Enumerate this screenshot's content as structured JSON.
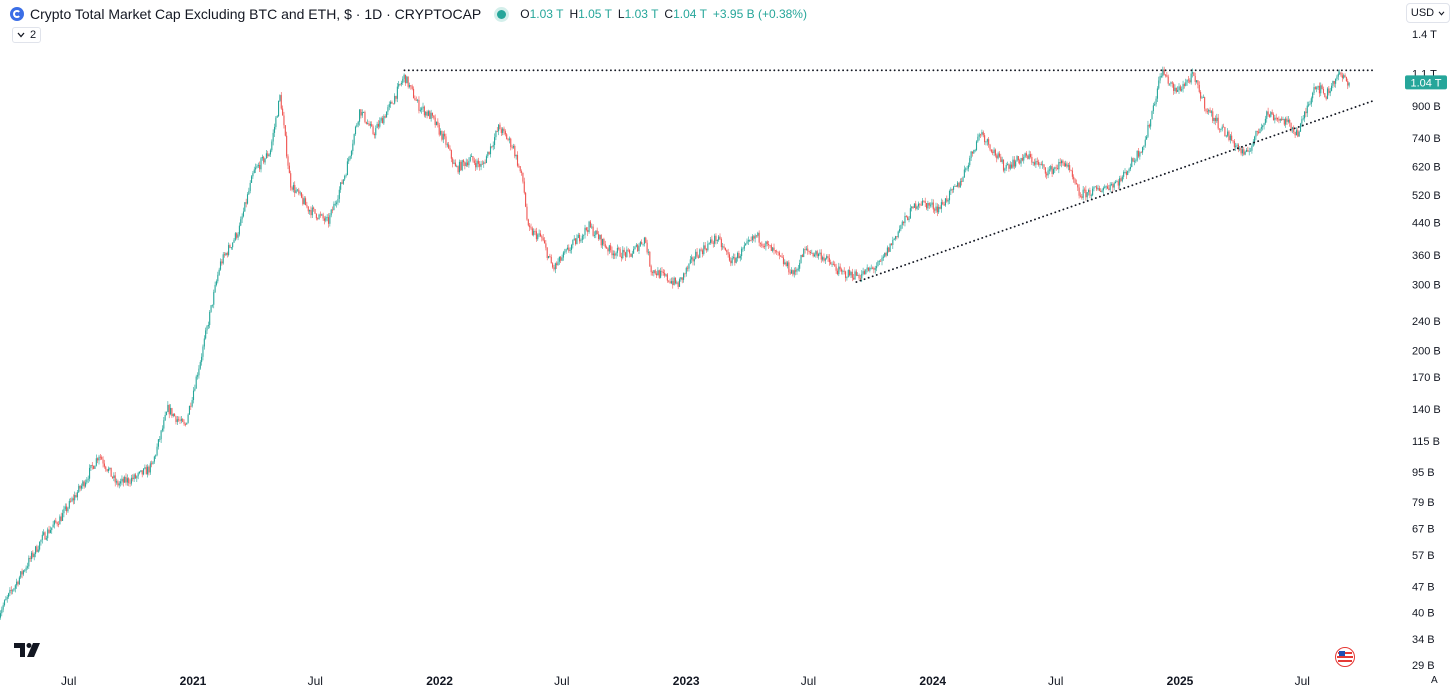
{
  "header": {
    "title": "Crypto Total Market Cap Excluding BTC and ETH, $ · 1D · CRYPTOCAP",
    "ohlc": [
      {
        "key": "O",
        "value": "1.03 T"
      },
      {
        "key": "H",
        "value": "1.05 T"
      },
      {
        "key": "L",
        "value": "1.03 T"
      },
      {
        "key": "C",
        "value": "1.04 T"
      }
    ],
    "change": "+3.95 B (+0.38%)",
    "up_color": "#26a69a",
    "down_color": "#ef5350"
  },
  "collapse_badge": "2",
  "currency": "USD",
  "price_label": "1.04 T",
  "price_marker_color": "#26a69a",
  "corner_label": "A",
  "chart_data": {
    "type": "candlestick",
    "scale": "log",
    "yaxis_ticks": [
      {
        "label": "1.4 T",
        "value": 1400
      },
      {
        "label": "1.1 T",
        "value": 1100
      },
      {
        "label": "900 B",
        "value": 900
      },
      {
        "label": "740 B",
        "value": 740
      },
      {
        "label": "620 B",
        "value": 620
      },
      {
        "label": "520 B",
        "value": 520
      },
      {
        "label": "440 B",
        "value": 440
      },
      {
        "label": "360 B",
        "value": 360
      },
      {
        "label": "300 B",
        "value": 300
      },
      {
        "label": "240 B",
        "value": 240
      },
      {
        "label": "200 B",
        "value": 200
      },
      {
        "label": "170 B",
        "value": 170
      },
      {
        "label": "140 B",
        "value": 140
      },
      {
        "label": "115 B",
        "value": 115
      },
      {
        "label": "95 B",
        "value": 95
      },
      {
        "label": "79 B",
        "value": 79
      },
      {
        "label": "67 B",
        "value": 67
      },
      {
        "label": "57 B",
        "value": 57
      },
      {
        "label": "47 B",
        "value": 47
      },
      {
        "label": "40 B",
        "value": 40
      },
      {
        "label": "34 B",
        "value": 34
      },
      {
        "label": "29 B",
        "value": 29
      }
    ],
    "xaxis_ticks": [
      {
        "label": "Jul",
        "date": "2020-07-01",
        "bold": false
      },
      {
        "label": "2021",
        "date": "2021-01-01",
        "bold": true
      },
      {
        "label": "Jul",
        "date": "2021-07-01",
        "bold": false
      },
      {
        "label": "2022",
        "date": "2022-01-01",
        "bold": true
      },
      {
        "label": "Jul",
        "date": "2022-07-01",
        "bold": false
      },
      {
        "label": "2023",
        "date": "2023-01-01",
        "bold": true
      },
      {
        "label": "Jul",
        "date": "2023-07-01",
        "bold": false
      },
      {
        "label": "2024",
        "date": "2024-01-01",
        "bold": true
      },
      {
        "label": "Jul",
        "date": "2024-07-01",
        "bold": false
      },
      {
        "label": "2025",
        "date": "2025-01-01",
        "bold": true
      },
      {
        "label": "Jul",
        "date": "2025-07-01",
        "bold": false
      }
    ],
    "series": [
      {
        "date": "2020-03-20",
        "close": 40
      },
      {
        "date": "2020-04-20",
        "close": 50
      },
      {
        "date": "2020-05-25",
        "close": 64
      },
      {
        "date": "2020-06-20",
        "close": 72
      },
      {
        "date": "2020-07-25",
        "close": 90
      },
      {
        "date": "2020-08-15",
        "close": 106
      },
      {
        "date": "2020-09-10",
        "close": 88
      },
      {
        "date": "2020-10-10",
        "close": 92
      },
      {
        "date": "2020-11-01",
        "close": 98
      },
      {
        "date": "2020-11-25",
        "close": 140
      },
      {
        "date": "2020-12-20",
        "close": 125
      },
      {
        "date": "2021-01-15",
        "close": 200
      },
      {
        "date": "2021-02-10",
        "close": 340
      },
      {
        "date": "2021-03-10",
        "close": 420
      },
      {
        "date": "2021-04-01",
        "close": 600
      },
      {
        "date": "2021-04-25",
        "close": 680
      },
      {
        "date": "2021-05-10",
        "close": 960
      },
      {
        "date": "2021-05-25",
        "close": 560
      },
      {
        "date": "2021-06-20",
        "close": 480
      },
      {
        "date": "2021-07-20",
        "close": 440
      },
      {
        "date": "2021-08-15",
        "close": 600
      },
      {
        "date": "2021-09-05",
        "close": 880
      },
      {
        "date": "2021-09-25",
        "close": 760
      },
      {
        "date": "2021-10-20",
        "close": 900
      },
      {
        "date": "2021-11-10",
        "close": 1080
      },
      {
        "date": "2021-12-01",
        "close": 900
      },
      {
        "date": "2021-12-20",
        "close": 840
      },
      {
        "date": "2022-01-10",
        "close": 720
      },
      {
        "date": "2022-01-25",
        "close": 610
      },
      {
        "date": "2022-02-15",
        "close": 650
      },
      {
        "date": "2022-03-05",
        "close": 620
      },
      {
        "date": "2022-03-30",
        "close": 790
      },
      {
        "date": "2022-04-20",
        "close": 700
      },
      {
        "date": "2022-05-05",
        "close": 560
      },
      {
        "date": "2022-05-12",
        "close": 420
      },
      {
        "date": "2022-06-01",
        "close": 400
      },
      {
        "date": "2022-06-18",
        "close": 330
      },
      {
        "date": "2022-07-15",
        "close": 380
      },
      {
        "date": "2022-08-10",
        "close": 430
      },
      {
        "date": "2022-09-10",
        "close": 370
      },
      {
        "date": "2022-10-10",
        "close": 360
      },
      {
        "date": "2022-11-01",
        "close": 400
      },
      {
        "date": "2022-11-10",
        "close": 330
      },
      {
        "date": "2022-12-20",
        "close": 300
      },
      {
        "date": "2023-01-15",
        "close": 360
      },
      {
        "date": "2023-02-15",
        "close": 400
      },
      {
        "date": "2023-03-10",
        "close": 345
      },
      {
        "date": "2023-04-15",
        "close": 405
      },
      {
        "date": "2023-05-15",
        "close": 360
      },
      {
        "date": "2023-06-10",
        "close": 320
      },
      {
        "date": "2023-06-25",
        "close": 370
      },
      {
        "date": "2023-07-20",
        "close": 360
      },
      {
        "date": "2023-08-18",
        "close": 322
      },
      {
        "date": "2023-09-15",
        "close": 318
      },
      {
        "date": "2023-10-15",
        "close": 340
      },
      {
        "date": "2023-11-15",
        "close": 430
      },
      {
        "date": "2023-12-10",
        "close": 500
      },
      {
        "date": "2024-01-10",
        "close": 480
      },
      {
        "date": "2024-02-10",
        "close": 560
      },
      {
        "date": "2024-03-12",
        "close": 770
      },
      {
        "date": "2024-04-15",
        "close": 620
      },
      {
        "date": "2024-05-20",
        "close": 660
      },
      {
        "date": "2024-06-20",
        "close": 600
      },
      {
        "date": "2024-07-15",
        "close": 640
      },
      {
        "date": "2024-08-05",
        "close": 520
      },
      {
        "date": "2024-09-05",
        "close": 540
      },
      {
        "date": "2024-10-05",
        "close": 570
      },
      {
        "date": "2024-11-10",
        "close": 720
      },
      {
        "date": "2024-12-05",
        "close": 1120
      },
      {
        "date": "2024-12-25",
        "close": 980
      },
      {
        "date": "2025-01-20",
        "close": 1080
      },
      {
        "date": "2025-02-10",
        "close": 880
      },
      {
        "date": "2025-03-10",
        "close": 760
      },
      {
        "date": "2025-04-08",
        "close": 660
      },
      {
        "date": "2025-05-10",
        "close": 860
      },
      {
        "date": "2025-06-05",
        "close": 820
      },
      {
        "date": "2025-06-25",
        "close": 760
      },
      {
        "date": "2025-07-20",
        "close": 1030
      },
      {
        "date": "2025-08-05",
        "close": 960
      },
      {
        "date": "2025-08-22",
        "close": 1090
      },
      {
        "date": "2025-09-10",
        "close": 1040
      }
    ],
    "annotations": [
      {
        "type": "horizontal-dotted",
        "from_date": "2021-11-10",
        "to_date": "2025-10-15",
        "value": 1120
      },
      {
        "type": "trend-dotted",
        "from_date": "2023-09-10",
        "from_value": 305,
        "to_date": "2025-10-15",
        "to_value": 930
      }
    ]
  }
}
